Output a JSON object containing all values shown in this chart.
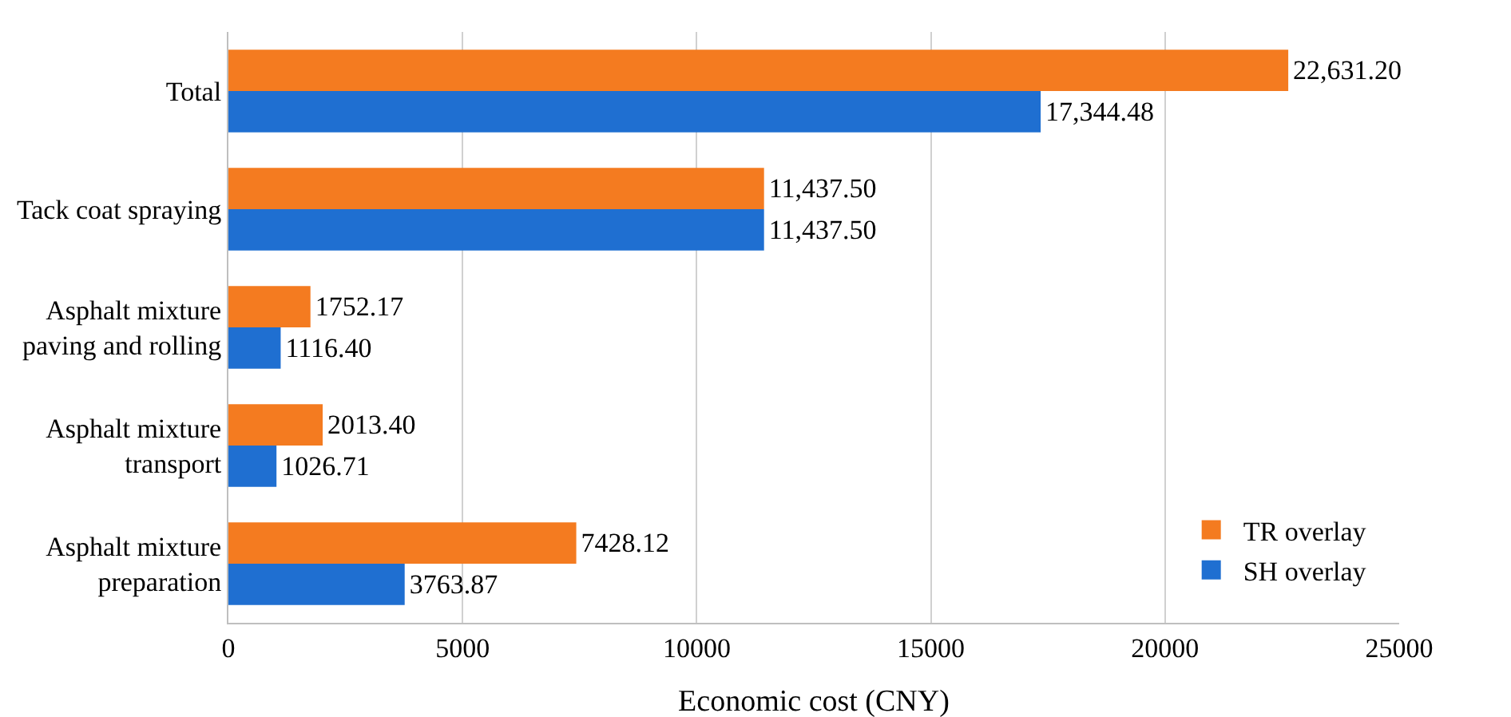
{
  "chart_data": {
    "type": "bar",
    "orientation": "horizontal",
    "xlabel": "Economic cost (CNY)",
    "categories": [
      "Total",
      "Tack coat spraying",
      "Asphalt mixture paving and rolling",
      "Asphalt mixture transport",
      "Asphalt mixture preparation"
    ],
    "series": [
      {
        "name": "TR overlay",
        "color": "#f47b20",
        "values": [
          22631.2,
          11437.5,
          1752.17,
          2013.4,
          7428.12
        ],
        "value_labels": [
          "22,631.20",
          "11,437.50",
          "1752.17",
          "2013.40",
          "7428.12"
        ]
      },
      {
        "name": "SH overlay",
        "color": "#1f6fd1",
        "values": [
          17344.48,
          11437.5,
          1116.4,
          1026.71,
          3763.87
        ],
        "value_labels": [
          "17,344.48",
          "11,437.50",
          "1116.40",
          "1026.71",
          "3763.87"
        ]
      }
    ],
    "xlim": [
      0,
      25000
    ],
    "xticks": [
      0,
      5000,
      10000,
      15000,
      20000,
      25000
    ],
    "grid": "x",
    "legend": "bottom right"
  }
}
